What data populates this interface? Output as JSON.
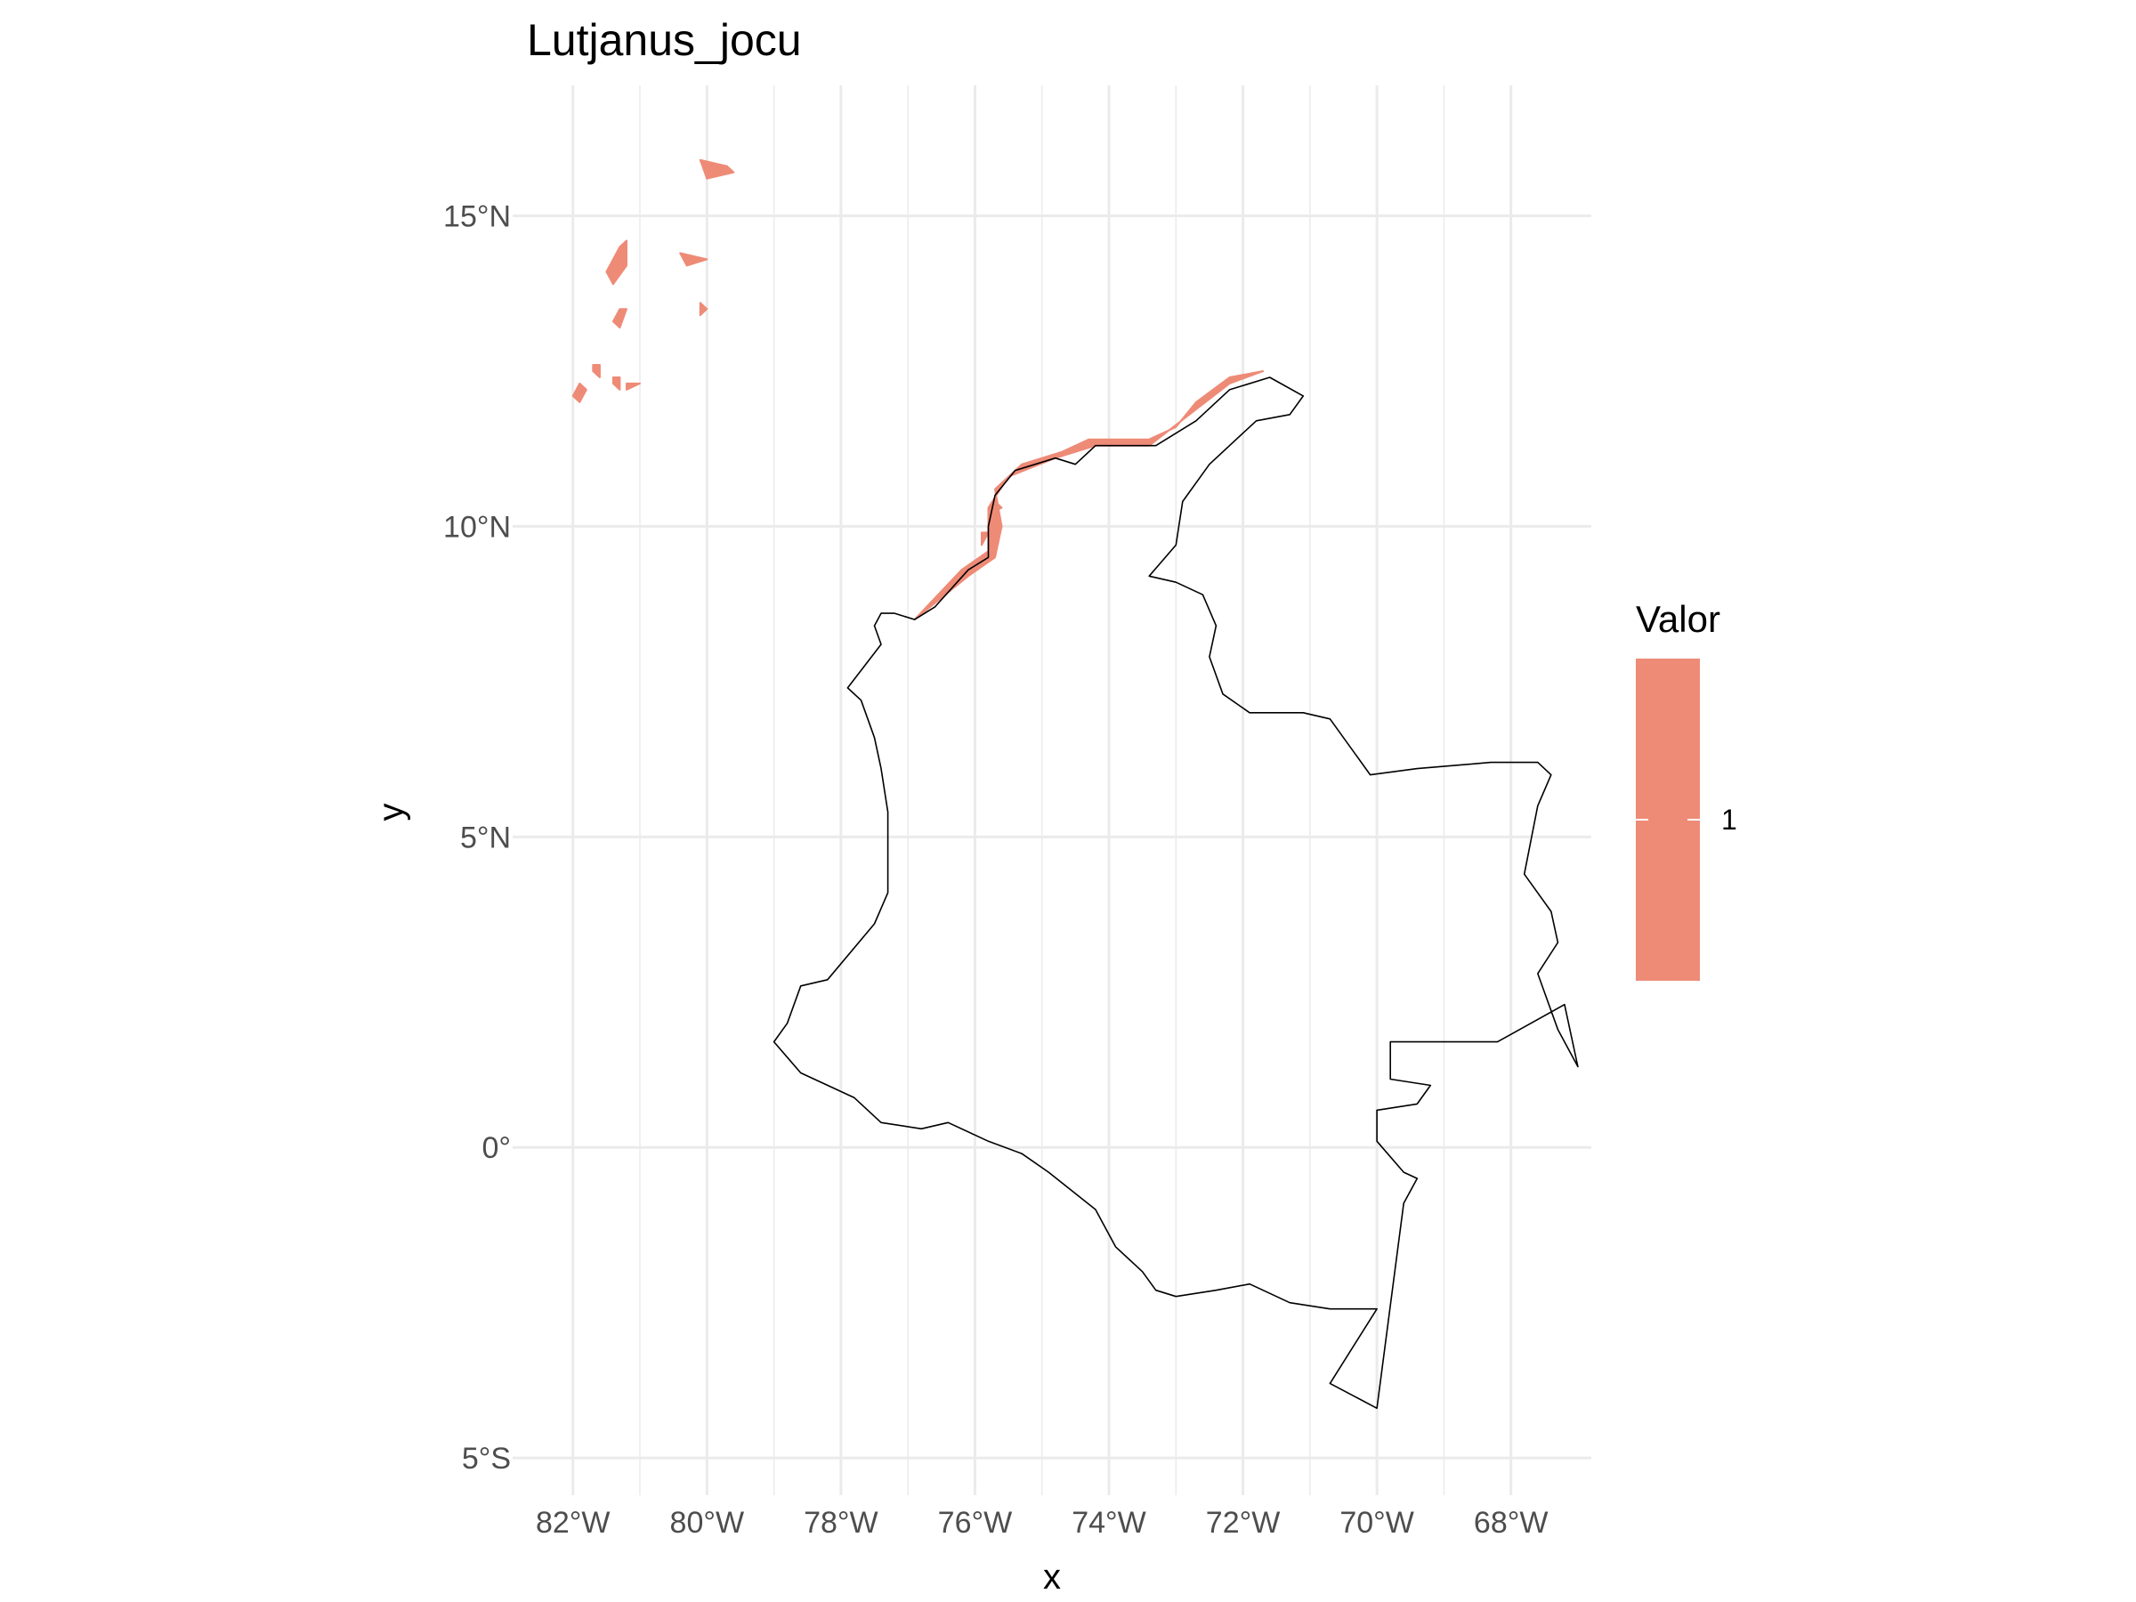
{
  "title": "Lutjanus_jocu",
  "axes": {
    "x_title": "x",
    "y_title": "y",
    "x_ticks": [
      {
        "value": -82,
        "label": "82°W"
      },
      {
        "value": -80,
        "label": "80°W"
      },
      {
        "value": -78,
        "label": "78°W"
      },
      {
        "value": -76,
        "label": "76°W"
      },
      {
        "value": -74,
        "label": "74°W"
      },
      {
        "value": -72,
        "label": "72°W"
      },
      {
        "value": -70,
        "label": "70°W"
      },
      {
        "value": -68,
        "label": "68°W"
      }
    ],
    "y_ticks": [
      {
        "value": 15,
        "label": "15°N"
      },
      {
        "value": 10,
        "label": "10°N"
      },
      {
        "value": 5,
        "label": "5°N"
      },
      {
        "value": 0,
        "label": "0°"
      },
      {
        "value": -5,
        "label": "5°S"
      }
    ],
    "x_range": [
      -82.9,
      -66.8
    ],
    "y_range": [
      -5.6,
      17.1
    ],
    "grid": true
  },
  "legend": {
    "title": "Valor",
    "entries": [
      {
        "label": "1",
        "color": "#ee8b77"
      }
    ],
    "placement": "right"
  },
  "colors": {
    "fill": "#ee8b77",
    "outline": "#000000",
    "grid": "#ebebeb"
  },
  "chart_data": {
    "type": "map",
    "title": "Lutjanus_jocu",
    "xlabel": "x",
    "ylabel": "y",
    "legend_title": "Valor",
    "legend_values": [
      1
    ],
    "country_outline": [
      [
        -77.2,
        8.6
      ],
      [
        -77.4,
        8.6
      ],
      [
        -77.5,
        8.4
      ],
      [
        -77.4,
        8.1
      ],
      [
        -77.9,
        7.4
      ],
      [
        -77.7,
        7.2
      ],
      [
        -77.5,
        6.6
      ],
      [
        -77.4,
        6.1
      ],
      [
        -77.3,
        5.4
      ],
      [
        -77.3,
        4.5
      ],
      [
        -77.3,
        4.1
      ],
      [
        -77.5,
        3.6
      ],
      [
        -78.2,
        2.7
      ],
      [
        -78.6,
        2.6
      ],
      [
        -78.8,
        2.0
      ],
      [
        -79.0,
        1.7
      ],
      [
        -78.6,
        1.2
      ],
      [
        -77.8,
        0.8
      ],
      [
        -77.4,
        0.4
      ],
      [
        -76.8,
        0.3
      ],
      [
        -76.4,
        0.4
      ],
      [
        -75.8,
        0.1
      ],
      [
        -75.3,
        -0.1
      ],
      [
        -74.9,
        -0.4
      ],
      [
        -74.2,
        -1.0
      ],
      [
        -73.9,
        -1.6
      ],
      [
        -73.5,
        -2.0
      ],
      [
        -73.3,
        -2.3
      ],
      [
        -73.0,
        -2.4
      ],
      [
        -72.4,
        -2.3
      ],
      [
        -71.9,
        -2.2
      ],
      [
        -71.3,
        -2.5
      ],
      [
        -70.7,
        -2.6
      ],
      [
        -70.0,
        -2.6
      ],
      [
        -70.7,
        -3.8
      ],
      [
        -70.0,
        -4.2
      ],
      [
        -69.6,
        -0.9
      ],
      [
        -69.4,
        -0.5
      ],
      [
        -69.6,
        -0.4
      ],
      [
        -70.0,
        0.1
      ],
      [
        -70.0,
        0.6
      ],
      [
        -69.4,
        0.7
      ],
      [
        -69.2,
        1.0
      ],
      [
        -69.8,
        1.1
      ],
      [
        -69.8,
        1.7
      ],
      [
        -68.2,
        1.7
      ],
      [
        -67.7,
        2.0
      ],
      [
        -67.2,
        2.3
      ],
      [
        -67.0,
        1.3
      ],
      [
        -67.3,
        1.9
      ],
      [
        -67.6,
        2.8
      ],
      [
        -67.3,
        3.3
      ],
      [
        -67.4,
        3.8
      ],
      [
        -67.8,
        4.4
      ],
      [
        -67.6,
        5.5
      ],
      [
        -67.4,
        6.0
      ],
      [
        -67.6,
        6.2
      ],
      [
        -68.3,
        6.2
      ],
      [
        -69.4,
        6.1
      ],
      [
        -70.1,
        6.0
      ],
      [
        -70.7,
        6.9
      ],
      [
        -71.1,
        7.0
      ],
      [
        -71.9,
        7.0
      ],
      [
        -72.3,
        7.3
      ],
      [
        -72.5,
        7.9
      ],
      [
        -72.4,
        8.4
      ],
      [
        -72.6,
        8.9
      ],
      [
        -73.0,
        9.1
      ],
      [
        -73.4,
        9.2
      ],
      [
        -73.0,
        9.7
      ],
      [
        -72.9,
        10.4
      ],
      [
        -72.5,
        11.0
      ],
      [
        -72.1,
        11.4
      ],
      [
        -71.8,
        11.7
      ],
      [
        -71.3,
        11.8
      ],
      [
        -71.1,
        12.1
      ],
      [
        -71.6,
        12.4
      ],
      [
        -72.2,
        12.2
      ],
      [
        -72.7,
        11.7
      ],
      [
        -73.3,
        11.3
      ],
      [
        -74.2,
        11.3
      ],
      [
        -74.5,
        11.0
      ],
      [
        -74.8,
        11.1
      ],
      [
        -75.4,
        10.9
      ],
      [
        -75.7,
        10.5
      ],
      [
        -75.8,
        10.0
      ],
      [
        -75.8,
        9.5
      ],
      [
        -76.1,
        9.3
      ],
      [
        -76.6,
        8.7
      ],
      [
        -76.9,
        8.5
      ],
      [
        -77.2,
        8.6
      ]
    ],
    "presence_patches": [
      {
        "value": 1,
        "points": [
          [
            -76.9,
            8.5
          ],
          [
            -76.1,
            9.2
          ],
          [
            -75.7,
            9.5
          ],
          [
            -75.6,
            10.0
          ],
          [
            -75.7,
            10.6
          ],
          [
            -75.3,
            11.0
          ],
          [
            -74.7,
            11.2
          ],
          [
            -74.3,
            11.4
          ],
          [
            -73.4,
            11.4
          ],
          [
            -73.0,
            11.6
          ],
          [
            -72.7,
            12.0
          ],
          [
            -72.2,
            12.4
          ],
          [
            -71.7,
            12.5
          ],
          [
            -72.2,
            12.3
          ],
          [
            -72.8,
            11.8
          ],
          [
            -73.4,
            11.3
          ],
          [
            -74.2,
            11.3
          ],
          [
            -74.8,
            11.1
          ],
          [
            -75.5,
            10.8
          ],
          [
            -75.8,
            10.3
          ],
          [
            -75.8,
            9.6
          ],
          [
            -76.2,
            9.3
          ],
          [
            -76.9,
            8.5
          ]
        ]
      },
      {
        "value": 1,
        "points": [
          [
            -81.3,
            14.5
          ],
          [
            -81.2,
            14.6
          ],
          [
            -81.2,
            14.2
          ],
          [
            -81.4,
            13.9
          ],
          [
            -81.5,
            14.1
          ],
          [
            -81.3,
            14.5
          ]
        ]
      },
      {
        "value": 1,
        "points": [
          [
            -80.4,
            14.4
          ],
          [
            -80.0,
            14.3
          ],
          [
            -80.3,
            14.2
          ],
          [
            -80.4,
            14.4
          ]
        ]
      },
      {
        "value": 1,
        "points": [
          [
            -81.3,
            13.5
          ],
          [
            -81.2,
            13.5
          ],
          [
            -81.3,
            13.2
          ],
          [
            -81.4,
            13.3
          ],
          [
            -81.3,
            13.5
          ]
        ]
      },
      {
        "value": 1,
        "points": [
          [
            -81.7,
            12.6
          ],
          [
            -81.6,
            12.6
          ],
          [
            -81.6,
            12.4
          ],
          [
            -81.7,
            12.5
          ],
          [
            -81.7,
            12.6
          ]
        ]
      },
      {
        "value": 1,
        "points": [
          [
            -81.4,
            12.4
          ],
          [
            -81.3,
            12.4
          ],
          [
            -81.3,
            12.2
          ],
          [
            -81.4,
            12.3
          ],
          [
            -81.4,
            12.4
          ]
        ]
      },
      {
        "value": 1,
        "points": [
          [
            -81.0,
            12.3
          ],
          [
            -81.2,
            12.3
          ],
          [
            -81.2,
            12.2
          ],
          [
            -81.0,
            12.3
          ]
        ]
      },
      {
        "value": 1,
        "points": [
          [
            -81.9,
            12.3
          ],
          [
            -81.8,
            12.2
          ],
          [
            -81.9,
            12.0
          ],
          [
            -82.0,
            12.1
          ],
          [
            -81.9,
            12.3
          ]
        ]
      },
      {
        "value": 1,
        "points": [
          [
            -80.1,
            15.9
          ],
          [
            -79.7,
            15.8
          ],
          [
            -79.6,
            15.7
          ],
          [
            -80.0,
            15.6
          ],
          [
            -80.1,
            15.9
          ]
        ]
      },
      {
        "value": 1,
        "points": [
          [
            -80.1,
            13.6
          ],
          [
            -80.0,
            13.5
          ],
          [
            -80.1,
            13.4
          ],
          [
            -80.1,
            13.6
          ]
        ]
      },
      {
        "value": 1,
        "points": [
          [
            -75.7,
            10.4
          ],
          [
            -75.6,
            10.3
          ],
          [
            -75.8,
            10.2
          ],
          [
            -75.7,
            10.4
          ]
        ]
      },
      {
        "value": 1,
        "points": [
          [
            -75.9,
            9.9
          ],
          [
            -75.8,
            9.9
          ],
          [
            -75.9,
            9.7
          ],
          [
            -75.9,
            9.9
          ]
        ]
      }
    ]
  }
}
